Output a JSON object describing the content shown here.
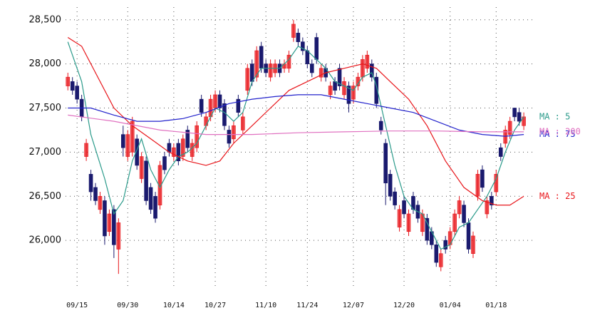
{
  "chart_data": {
    "type": "candlestick",
    "ylim": [
      25500,
      28700
    ],
    "yticks": [
      {
        "value": 26000,
        "label": "26,000"
      },
      {
        "value": 26500,
        "label": "26,500"
      },
      {
        "value": 27000,
        "label": "27,000"
      },
      {
        "value": 27500,
        "label": "27,500"
      },
      {
        "value": 28000,
        "label": "28,000"
      },
      {
        "value": 28500,
        "label": "28,500"
      }
    ],
    "xlim": [
      -0.5,
      101
    ],
    "xticks": [
      {
        "value": 2,
        "label": "09/15"
      },
      {
        "value": 13,
        "label": "09/30"
      },
      {
        "value": 23,
        "label": "10/14"
      },
      {
        "value": 32,
        "label": "10/27"
      },
      {
        "value": 43,
        "label": "11/10"
      },
      {
        "value": 52,
        "label": "11/24"
      },
      {
        "value": 62,
        "label": "12/07"
      },
      {
        "value": 73,
        "label": "12/20"
      },
      {
        "value": 83,
        "label": "01/04"
      },
      {
        "value": 93,
        "label": "01/18"
      }
    ],
    "grid": true,
    "up_color": "#e8161b",
    "down_color": "#1a1a6e",
    "open": [
      27750,
      27800,
      27750,
      27600,
      26950,
      26750,
      26600,
      26350,
      26450,
      26100,
      26350,
      25900,
      27200,
      26950,
      27000,
      27150,
      26700,
      26900,
      26600,
      26500,
      26400,
      26950,
      27100,
      26950,
      27100,
      26950,
      27250,
      26950,
      27050,
      27600,
      27300,
      27400,
      27500,
      27650,
      27550,
      27250,
      27150,
      27600,
      27250,
      27700,
      28000,
      27850,
      28200,
      28000,
      27850,
      27900,
      28000,
      27950,
      27950,
      28300,
      28350,
      28250,
      28150,
      28000,
      28300,
      27850,
      27950,
      27650,
      27800,
      27950,
      27650,
      27750,
      27600,
      27750,
      27850,
      27950,
      28000,
      27850,
      27350,
      27100,
      26750,
      26550,
      26150,
      26450,
      26100,
      26500,
      26400,
      26100,
      26250,
      26100,
      25950,
      25700,
      26000,
      25950,
      26100,
      26300,
      26400,
      26200,
      25850,
      26500,
      26800,
      26300,
      26500,
      26550,
      27050,
      27100,
      27200,
      27500,
      27450,
      27300
    ],
    "high": [
      27900,
      27850,
      27800,
      27650,
      27150,
      26800,
      26650,
      26550,
      26500,
      26350,
      26400,
      26250,
      27300,
      27250,
      27400,
      27200,
      27000,
      26950,
      26650,
      26550,
      26900,
      27000,
      27150,
      27100,
      27150,
      27200,
      27300,
      27150,
      27350,
      27650,
      27450,
      27650,
      27700,
      27700,
      27600,
      27300,
      27350,
      27650,
      27450,
      28000,
      28050,
      28200,
      28250,
      28050,
      28050,
      28050,
      28050,
      28050,
      28150,
      28500,
      28400,
      28300,
      28200,
      28050,
      28350,
      28000,
      28000,
      27800,
      27850,
      28000,
      27850,
      27800,
      27800,
      27900,
      28100,
      28150,
      28050,
      27900,
      27400,
      27150,
      26800,
      26600,
      26400,
      26500,
      26350,
      26550,
      26450,
      26350,
      26300,
      26150,
      26000,
      25900,
      26050,
      26150,
      26350,
      26500,
      26450,
      26250,
      26100,
      26800,
      26850,
      26500,
      26550,
      26800,
      27100,
      27300,
      27400,
      27500,
      27500,
      27450
    ],
    "low": [
      27700,
      27650,
      27550,
      27350,
      26900,
      26450,
      26400,
      26300,
      25950,
      26050,
      25800,
      25620,
      26950,
      26900,
      26950,
      26800,
      26650,
      26400,
      26300,
      26200,
      26350,
      26750,
      26950,
      26900,
      26850,
      26900,
      27000,
      26900,
      27000,
      27400,
      27250,
      27350,
      27450,
      27450,
      27250,
      27050,
      27100,
      27400,
      27200,
      27650,
      27750,
      27800,
      27900,
      27850,
      27800,
      27850,
      27850,
      27900,
      27900,
      28250,
      28200,
      28100,
      27950,
      27850,
      28000,
      27800,
      27800,
      27600,
      27650,
      27700,
      27600,
      27450,
      27550,
      27700,
      27800,
      27900,
      27800,
      27500,
      27200,
      26400,
      26450,
      26350,
      26100,
      26250,
      26050,
      26300,
      26200,
      26050,
      25950,
      25900,
      25700,
      25650,
      25850,
      25900,
      26050,
      26250,
      26150,
      25850,
      25800,
      26450,
      26550,
      26250,
      26350,
      26500,
      26900,
      27050,
      27150,
      27350,
      27300,
      27250
    ],
    "close": [
      27850,
      27700,
      27600,
      27400,
      27100,
      26550,
      26450,
      26500,
      26050,
      26300,
      25950,
      26200,
      27050,
      27200,
      27350,
      26850,
      26950,
      26450,
      26350,
      26250,
      26850,
      26800,
      27000,
      27050,
      26900,
      27150,
      27050,
      27100,
      27300,
      27450,
      27400,
      27600,
      27650,
      27500,
      27300,
      27100,
      27300,
      27450,
      27400,
      27950,
      27800,
      28150,
      27950,
      27900,
      28000,
      28000,
      27900,
      28000,
      28100,
      28450,
      28250,
      28150,
      28000,
      27900,
      28050,
      27950,
      27850,
      27750,
      27700,
      27750,
      27800,
      27550,
      27750,
      27850,
      28050,
      28100,
      27850,
      27550,
      27250,
      26650,
      26500,
      26400,
      26350,
      26300,
      26300,
      26350,
      26250,
      26300,
      26000,
      25950,
      25750,
      25850,
      25900,
      26100,
      26300,
      26450,
      26200,
      25900,
      26050,
      26750,
      26600,
      26450,
      26400,
      26750,
      26950,
      27250,
      27350,
      27400,
      27350,
      27400
    ],
    "series": [
      {
        "name": "MA : 5",
        "color": "#2a9a8a",
        "x": [
          0,
          3,
          5,
          8,
          10,
          12,
          14,
          16,
          18,
          20,
          22,
          24,
          26,
          28,
          30,
          32,
          34,
          36,
          38,
          40,
          42,
          44,
          46,
          48,
          50,
          52,
          54,
          56,
          58,
          60,
          62,
          64,
          66,
          67,
          69,
          71,
          73,
          75,
          77,
          79,
          81,
          83,
          85,
          87,
          89,
          91,
          93,
          95,
          97,
          99
        ],
        "values": [
          28250,
          27800,
          27200,
          26700,
          26300,
          26450,
          26900,
          27150,
          26800,
          26600,
          26800,
          26950,
          27000,
          27100,
          27300,
          27500,
          27450,
          27350,
          27450,
          27800,
          27950,
          27950,
          27950,
          28050,
          28200,
          28150,
          28050,
          27950,
          27800,
          27750,
          27700,
          27850,
          27900,
          27750,
          27300,
          26850,
          26500,
          26350,
          26300,
          26100,
          25900,
          25950,
          26150,
          26200,
          26350,
          26500,
          26700,
          27000,
          27250,
          27400
        ]
      },
      {
        "name": "MA : 25",
        "color": "#e8161b",
        "x": [
          0,
          3,
          6,
          10,
          14,
          18,
          22,
          26,
          30,
          33,
          36,
          40,
          44,
          48,
          52,
          56,
          60,
          64,
          67,
          70,
          74,
          78,
          82,
          86,
          90,
          93,
          96,
          99
        ],
        "values": [
          28300,
          28200,
          27900,
          27500,
          27300,
          27150,
          27000,
          26900,
          26850,
          26900,
          27100,
          27300,
          27500,
          27700,
          27800,
          27900,
          27950,
          28000,
          27950,
          27800,
          27600,
          27300,
          26900,
          26600,
          26450,
          26400,
          26400,
          26500
        ]
      },
      {
        "name": "MA : 75",
        "color": "#2222cc",
        "x": [
          0,
          5,
          10,
          15,
          20,
          25,
          30,
          35,
          40,
          45,
          50,
          55,
          60,
          65,
          70,
          75,
          80,
          85,
          90,
          95,
          99
        ],
        "values": [
          27500,
          27500,
          27420,
          27350,
          27350,
          27380,
          27450,
          27550,
          27600,
          27630,
          27650,
          27650,
          27600,
          27550,
          27500,
          27450,
          27350,
          27250,
          27200,
          27180,
          27200
        ]
      },
      {
        "name": "MA : 200",
        "color": "#e070c0",
        "x": [
          0,
          10,
          20,
          30,
          40,
          50,
          60,
          70,
          80,
          90,
          99
        ],
        "values": [
          27420,
          27350,
          27250,
          27200,
          27200,
          27220,
          27230,
          27240,
          27240,
          27230,
          27230
        ]
      }
    ]
  }
}
